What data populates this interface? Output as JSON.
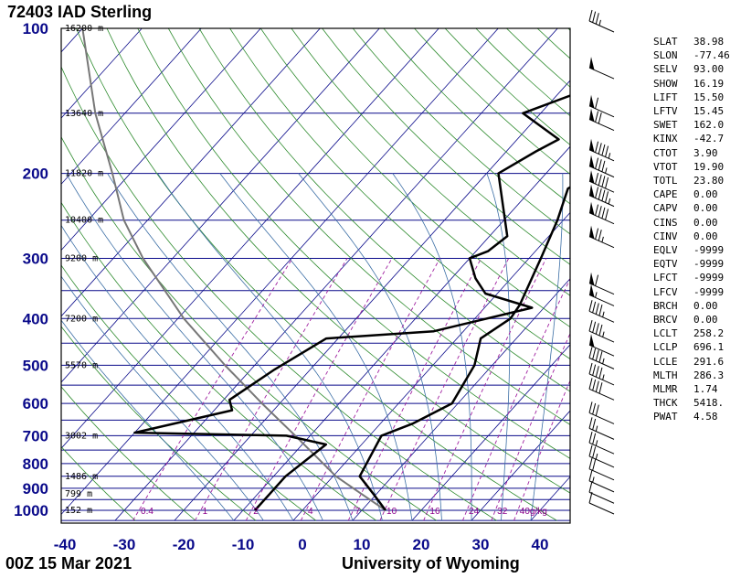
{
  "header": {
    "station": "72403 IAD Sterling"
  },
  "footer": {
    "date": "00Z 15 Mar 2021",
    "source": "University of Wyoming"
  },
  "chart_data": {
    "type": "skew-t",
    "pressure_ticks": [
      100,
      200,
      300,
      400,
      500,
      600,
      700,
      800,
      900,
      1000
    ],
    "temp_ticks": [
      -40,
      -30,
      -20,
      -10,
      0,
      10,
      20,
      30,
      40
    ],
    "height_labels": [
      {
        "p": 100,
        "text": "16200 m"
      },
      {
        "p": 150,
        "text": "13640 m"
      },
      {
        "p": 200,
        "text": "11820 m"
      },
      {
        "p": 250,
        "text": "10400 m"
      },
      {
        "p": 300,
        "text": "9200 m"
      },
      {
        "p": 400,
        "text": "7200 m"
      },
      {
        "p": 500,
        "text": "5570 m"
      },
      {
        "p": 700,
        "text": "3002 m"
      },
      {
        "p": 850,
        "text": "1486 m"
      },
      {
        "p": 925,
        "text": "799 m"
      },
      {
        "p": 1000,
        "text": "152 m"
      }
    ],
    "mixing_ratio_labels": [
      "0.4",
      "1",
      "2",
      "4",
      "7",
      "10",
      "16",
      "24",
      "32",
      "40g/kg"
    ],
    "mixing_ratios": [
      0.4,
      1,
      2,
      4,
      7,
      10,
      16,
      24,
      32,
      40
    ],
    "temperature": [
      {
        "p": 1000,
        "t": 14
      },
      {
        "p": 925,
        "t": 9.5
      },
      {
        "p": 850,
        "t": 4.5
      },
      {
        "p": 700,
        "t": 2
      },
      {
        "p": 660,
        "t": 5.5
      },
      {
        "p": 600,
        "t": 9
      },
      {
        "p": 500,
        "t": 7
      },
      {
        "p": 440,
        "t": 4
      },
      {
        "p": 400,
        "t": 6
      },
      {
        "p": 375,
        "t": 5.5
      },
      {
        "p": 300,
        "t": 2
      },
      {
        "p": 250,
        "t": -1
      },
      {
        "p": 215,
        "t": -4
      },
      {
        "p": 200,
        "t": -2
      },
      {
        "p": 180,
        "t": -2
      },
      {
        "p": 165,
        "t": 5
      },
      {
        "p": 150,
        "t": 5
      },
      {
        "p": 130,
        "t": 8
      },
      {
        "p": 115,
        "t": 15
      },
      {
        "p": 110,
        "t": 20
      },
      {
        "p": 100,
        "t": 23
      }
    ],
    "dewpoint": [
      {
        "p": 1000,
        "t": -8
      },
      {
        "p": 925,
        "t": -8
      },
      {
        "p": 850,
        "t": -8
      },
      {
        "p": 730,
        "t": -6
      },
      {
        "p": 700,
        "t": -14
      },
      {
        "p": 690,
        "t": -40
      },
      {
        "p": 620,
        "t": -27
      },
      {
        "p": 590,
        "t": -29
      },
      {
        "p": 510,
        "t": -26
      },
      {
        "p": 440,
        "t": -22
      },
      {
        "p": 425,
        "t": -5
      },
      {
        "p": 380,
        "t": 8
      },
      {
        "p": 355,
        "t": -2
      },
      {
        "p": 330,
        "t": -6
      },
      {
        "p": 300,
        "t": -10
      },
      {
        "p": 290,
        "t": -8
      },
      {
        "p": 270,
        "t": -7
      },
      {
        "p": 200,
        "t": -18
      },
      {
        "p": 180,
        "t": -15
      },
      {
        "p": 170,
        "t": -13
      },
      {
        "p": 150,
        "t": -23
      },
      {
        "p": 130,
        "t": -14
      },
      {
        "p": 100,
        "t": -7
      }
    ],
    "parcel": [
      {
        "p": 1000,
        "t": 14
      },
      {
        "p": 925,
        "t": 7.5
      },
      {
        "p": 850,
        "t": 0.5
      },
      {
        "p": 700,
        "t": -12.5
      },
      {
        "p": 600,
        "t": -23
      },
      {
        "p": 500,
        "t": -35
      },
      {
        "p": 400,
        "t": -49
      },
      {
        "p": 300,
        "t": -65
      },
      {
        "p": 250,
        "t": -74
      },
      {
        "p": 200,
        "t": -83
      },
      {
        "p": 150,
        "t": -95
      },
      {
        "p": 100,
        "t": -110
      }
    ],
    "wind_barbs": [
      {
        "p": 100,
        "knots": 35
      },
      {
        "p": 125,
        "knots": 50
      },
      {
        "p": 150,
        "knots": 60
      },
      {
        "p": 160,
        "knots": 70
      },
      {
        "p": 185,
        "knots": 95
      },
      {
        "p": 200,
        "knots": 85
      },
      {
        "p": 215,
        "knots": 90
      },
      {
        "p": 230,
        "knots": 95
      },
      {
        "p": 250,
        "knots": 90
      },
      {
        "p": 280,
        "knots": 75
      },
      {
        "p": 350,
        "knots": 60
      },
      {
        "p": 370,
        "knots": 55
      },
      {
        "p": 400,
        "knots": 45
      },
      {
        "p": 440,
        "knots": 45
      },
      {
        "p": 470,
        "knots": 50
      },
      {
        "p": 500,
        "knots": 45
      },
      {
        "p": 540,
        "knots": 45
      },
      {
        "p": 580,
        "knots": 40
      },
      {
        "p": 650,
        "knots": 30
      },
      {
        "p": 700,
        "knots": 25
      },
      {
        "p": 750,
        "knots": 25
      },
      {
        "p": 800,
        "knots": 25
      },
      {
        "p": 850,
        "knots": 20
      },
      {
        "p": 900,
        "knots": 15
      },
      {
        "p": 950,
        "knots": 10
      },
      {
        "p": 1000,
        "knots": 10
      }
    ],
    "colors": {
      "frame": "#000000",
      "isobar": "#0a0a8a",
      "isotherm": "#0a0a8a",
      "dry_adiabat": "#2e8b2e",
      "moist_adiabat": "#3b6ea5",
      "mixing_ratio": "#a020a0",
      "temperature": "#000000",
      "dewpoint": "#000000",
      "parcel": "#777777",
      "axis_text": "#0a0a8a"
    }
  },
  "indices": [
    {
      "name": "SLAT",
      "value": "38.98"
    },
    {
      "name": "SLON",
      "value": "-77.46"
    },
    {
      "name": "SELV",
      "value": "93.00"
    },
    {
      "name": "SHOW",
      "value": "16.19"
    },
    {
      "name": "LIFT",
      "value": "15.50"
    },
    {
      "name": "LFTV",
      "value": "15.45"
    },
    {
      "name": "SWET",
      "value": "162.0"
    },
    {
      "name": "KINX",
      "value": "-42.7"
    },
    {
      "name": "CTOT",
      "value": "3.90"
    },
    {
      "name": "VTOT",
      "value": "19.90"
    },
    {
      "name": "TOTL",
      "value": "23.80"
    },
    {
      "name": "CAPE",
      "value": "0.00"
    },
    {
      "name": "CAPV",
      "value": "0.00"
    },
    {
      "name": "CINS",
      "value": "0.00"
    },
    {
      "name": "CINV",
      "value": "0.00"
    },
    {
      "name": "EQLV",
      "value": "-9999"
    },
    {
      "name": "EQTV",
      "value": "-9999"
    },
    {
      "name": "LFCT",
      "value": "-9999"
    },
    {
      "name": "LFCV",
      "value": "-9999"
    },
    {
      "name": "BRCH",
      "value": "0.00"
    },
    {
      "name": "BRCV",
      "value": "0.00"
    },
    {
      "name": "LCLT",
      "value": "258.2"
    },
    {
      "name": "LCLP",
      "value": "696.1"
    },
    {
      "name": "LCLE",
      "value": "291.6"
    },
    {
      "name": "MLTH",
      "value": "286.3"
    },
    {
      "name": "MLMR",
      "value": "1.74"
    },
    {
      "name": "THCK",
      "value": "5418."
    },
    {
      "name": "PWAT",
      "value": "4.58"
    }
  ]
}
